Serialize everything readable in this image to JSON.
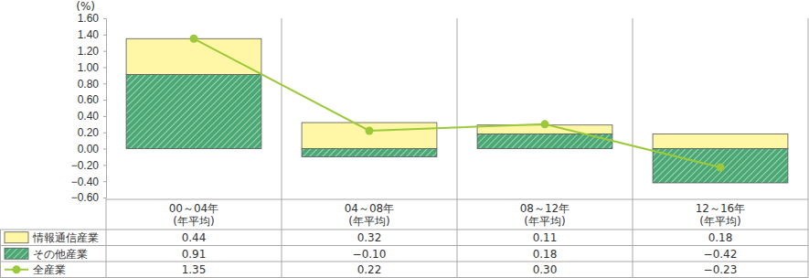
{
  "chart_data": {
    "type": "bar",
    "stacked": true,
    "data_labels": true,
    "grid": false,
    "y_label": "(%)",
    "categories": [
      "00～04年\n(年平均)",
      "04～08年\n(年平均)",
      "08～12年\n(年平均)",
      "12～16年\n(年平均)"
    ],
    "series": [
      {
        "name": "情報通信産業",
        "type": "bar",
        "color": "#fff6a6",
        "values": [
          0.44,
          0.32,
          0.11,
          0.18
        ],
        "value_labels": [
          "0.44",
          "0.32",
          "0.11",
          "0.18"
        ]
      },
      {
        "name": "その他産業",
        "type": "bar",
        "color": "#4aa874",
        "values": [
          0.91,
          -0.1,
          0.18,
          -0.42
        ],
        "value_labels": [
          "0.91",
          "−0.10",
          "0.18",
          "−0.42"
        ]
      },
      {
        "name": "全産業",
        "type": "line",
        "color": "#9cc93a",
        "marker": "circle",
        "values": [
          1.35,
          0.22,
          0.3,
          -0.23
        ],
        "value_labels": [
          "1.35",
          "0.22",
          "0.30",
          "−0.23"
        ]
      }
    ],
    "ylim": [
      -0.6,
      1.6
    ],
    "yticks": [
      {
        "value": -0.6,
        "label": "−0.60"
      },
      {
        "value": -0.4,
        "label": "−0.40"
      },
      {
        "value": -0.2,
        "label": "−0.20"
      },
      {
        "value": 0,
        "label": "0.00"
      },
      {
        "value": 0.2,
        "label": "0.20"
      },
      {
        "value": 0.4,
        "label": "0.40"
      },
      {
        "value": 0.6,
        "label": "0.60"
      },
      {
        "value": 0.8,
        "label": "0.80"
      },
      {
        "value": 1.0,
        "label": "1.00"
      },
      {
        "value": 1.2,
        "label": "1.20"
      },
      {
        "value": 1.4,
        "label": "1.40"
      },
      {
        "value": 1.6,
        "label": "1.60"
      }
    ]
  }
}
